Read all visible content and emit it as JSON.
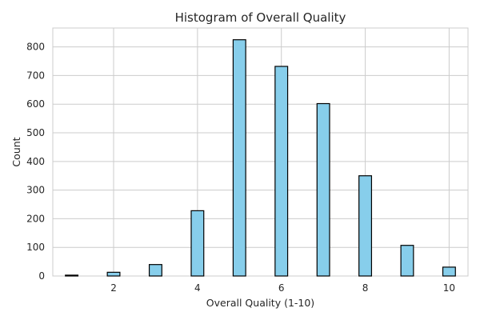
{
  "chart_data": {
    "type": "bar",
    "title": "Histogram of Overall Quality",
    "xlabel": "Overall Quality (1-10)",
    "ylabel": "Count",
    "x": [
      1,
      2,
      3,
      4,
      5,
      6,
      7,
      8,
      9,
      10
    ],
    "values": [
      3,
      13,
      40,
      228,
      825,
      732,
      602,
      350,
      107,
      31
    ],
    "xticks": [
      2,
      4,
      6,
      8,
      10
    ],
    "yticks": [
      0,
      100,
      200,
      300,
      400,
      500,
      600,
      700,
      800
    ],
    "xlim": [
      0.55,
      10.45
    ],
    "ylim": [
      0,
      866
    ],
    "grid": true,
    "colors": {
      "bar_fill": "#87ceeb",
      "bar_edge": "#000000",
      "grid": "#cccccc",
      "text": "#262626"
    }
  }
}
